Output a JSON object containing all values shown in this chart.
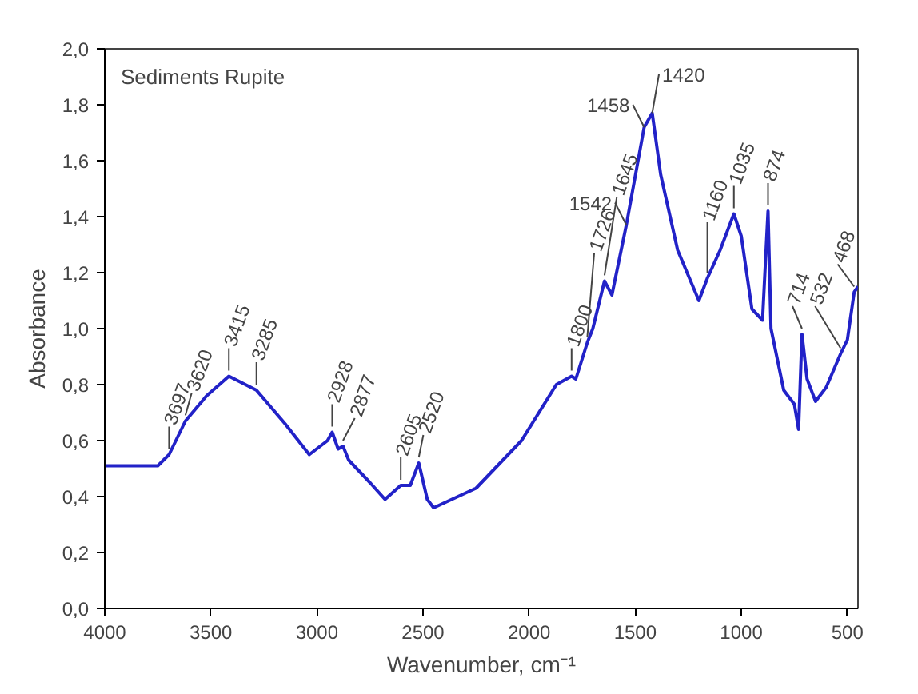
{
  "chart_data": {
    "type": "line",
    "title": "Sediments Rupite",
    "xlabel": "Wavenumber, cm⁻¹",
    "ylabel": "Absorbance",
    "xlim": [
      4000,
      450
    ],
    "ylim": [
      0,
      2
    ],
    "xticks": [
      4000,
      3500,
      3000,
      2500,
      2000,
      1500,
      1000,
      500
    ],
    "yticks": [
      {
        "value": 0,
        "label": "0,0"
      },
      {
        "value": 0.2,
        "label": "0,2"
      },
      {
        "value": 0.4,
        "label": "0,4"
      },
      {
        "value": 0.6,
        "label": "0,6"
      },
      {
        "value": 0.8,
        "label": "0,8"
      },
      {
        "value": 1.0,
        "label": "1,0"
      },
      {
        "value": 1.2,
        "label": "1,2"
      },
      {
        "value": 1.4,
        "label": "1,4"
      },
      {
        "value": 1.6,
        "label": "1,6"
      },
      {
        "value": 1.8,
        "label": "1,8"
      },
      {
        "value": 2.0,
        "label": "2,0"
      }
    ],
    "grid": false,
    "marker": "none",
    "line_style": "solid",
    "series": [
      {
        "color": "#2222c8",
        "x": [
          4000,
          3850,
          3750,
          3697,
          3620,
          3520,
          3415,
          3285,
          3150,
          3036,
          2950,
          2928,
          2900,
          2877,
          2850,
          2750,
          2679,
          2605,
          2560,
          2520,
          2480,
          2450,
          2250,
          2036,
          1872,
          1800,
          1780,
          1726,
          1700,
          1645,
          1610,
          1542,
          1458,
          1420,
          1380,
          1300,
          1200,
          1160,
          1100,
          1035,
          1000,
          950,
          900,
          874,
          860,
          800,
          750,
          730,
          714,
          690,
          650,
          600,
          532,
          500,
          468,
          450
        ],
        "values": [
          0.51,
          0.51,
          0.51,
          0.55,
          0.67,
          0.76,
          0.83,
          0.78,
          0.66,
          0.55,
          0.6,
          0.63,
          0.57,
          0.58,
          0.53,
          0.45,
          0.39,
          0.44,
          0.44,
          0.52,
          0.39,
          0.36,
          0.43,
          0.6,
          0.8,
          0.83,
          0.82,
          0.95,
          1.0,
          1.17,
          1.12,
          1.37,
          1.72,
          1.77,
          1.55,
          1.28,
          1.1,
          1.18,
          1.28,
          1.41,
          1.33,
          1.07,
          1.03,
          1.42,
          1.0,
          0.78,
          0.73,
          0.64,
          0.98,
          0.82,
          0.74,
          0.79,
          0.91,
          0.96,
          1.13,
          1.15
        ]
      }
    ],
    "annotations": [
      {
        "text": "3697",
        "x": 3697,
        "y": 0.55
      },
      {
        "text": "3620",
        "x": 3620,
        "y": 0.67
      },
      {
        "text": "3415",
        "x": 3415,
        "y": 0.83
      },
      {
        "text": "3285",
        "x": 3285,
        "y": 0.78
      },
      {
        "text": "2928",
        "x": 2928,
        "y": 0.63
      },
      {
        "text": "2877",
        "x": 2877,
        "y": 0.58
      },
      {
        "text": "2605",
        "x": 2605,
        "y": 0.44
      },
      {
        "text": "2520",
        "x": 2520,
        "y": 0.52
      },
      {
        "text": "1800",
        "x": 1800,
        "y": 0.83
      },
      {
        "text": "1726",
        "x": 1726,
        "y": 0.95
      },
      {
        "text": "1645",
        "x": 1645,
        "y": 1.17
      },
      {
        "text": "1542",
        "x": 1542,
        "y": 1.37
      },
      {
        "text": "1458",
        "x": 1458,
        "y": 1.72
      },
      {
        "text": "1420",
        "x": 1420,
        "y": 1.77
      },
      {
        "text": "1160",
        "x": 1160,
        "y": 1.18
      },
      {
        "text": "1035",
        "x": 1035,
        "y": 1.41
      },
      {
        "text": "874",
        "x": 874,
        "y": 1.42
      },
      {
        "text": "714",
        "x": 714,
        "y": 0.98
      },
      {
        "text": "532",
        "x": 532,
        "y": 0.91
      },
      {
        "text": "468",
        "x": 468,
        "y": 1.13
      }
    ]
  }
}
